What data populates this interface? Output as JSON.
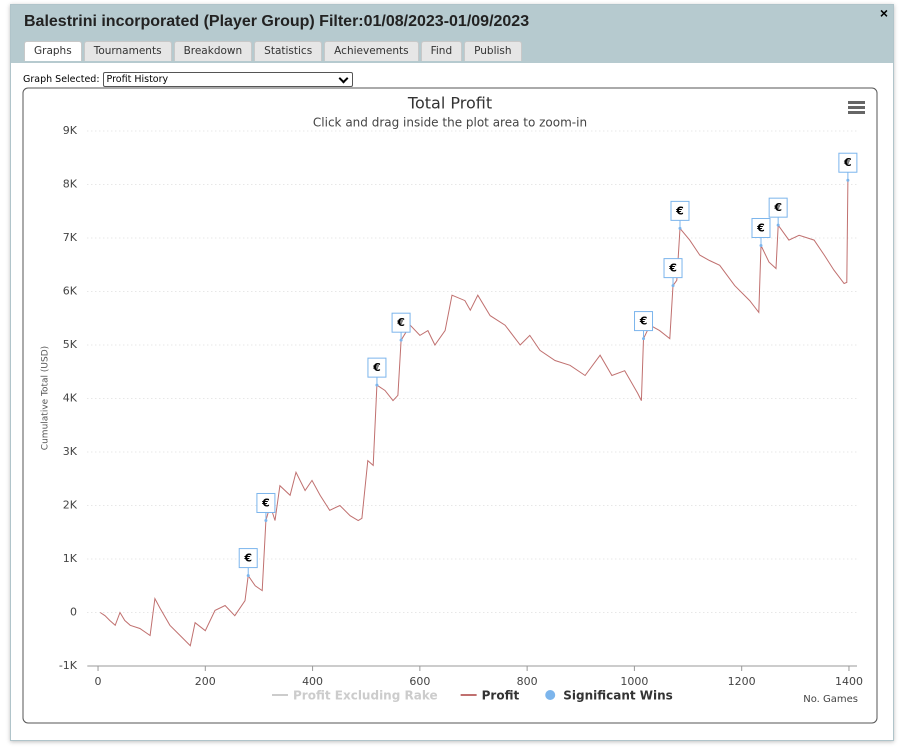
{
  "header": {
    "title": "Balestrini incorporated (Player Group) Filter:01/08/2023-01/09/2023"
  },
  "tabs": [
    {
      "label": "Graphs",
      "active": true
    },
    {
      "label": "Tournaments",
      "active": false
    },
    {
      "label": "Breakdown",
      "active": false
    },
    {
      "label": "Statistics",
      "active": false
    },
    {
      "label": "Achievements",
      "active": false
    },
    {
      "label": "Find",
      "active": false
    },
    {
      "label": "Publish",
      "active": false
    }
  ],
  "selector": {
    "label": "Graph Selected:",
    "value": "Profit History"
  },
  "chart_data": {
    "type": "line",
    "title": "Total Profit",
    "subtitle": "Click and drag inside the plot area to zoom-in",
    "x_label": "No. Games",
    "y_label": "Cumulative Total (USD)",
    "xlim": [
      -20,
      1415
    ],
    "ylim": [
      -1000,
      9000
    ],
    "xticks": [
      0,
      200,
      400,
      600,
      800,
      1000,
      1200,
      1400
    ],
    "yticks": [
      {
        "value": -1000,
        "label": "-1K"
      },
      0,
      {
        "value": 1000,
        "label": "1K"
      },
      {
        "value": 2000,
        "label": "2K"
      },
      {
        "value": 3000,
        "label": "3K"
      },
      {
        "value": 4000,
        "label": "4K"
      },
      {
        "value": 5000,
        "label": "5K"
      },
      {
        "value": 6000,
        "label": "6K"
      },
      {
        "value": 7000,
        "label": "7K"
      },
      {
        "value": 8000,
        "label": "8K"
      },
      {
        "value": 9000,
        "label": "9K"
      }
    ],
    "grid": true,
    "series": [
      {
        "name": "Profit Excluding Rake",
        "color": "#cccccc",
        "visible": false
      },
      {
        "name": "Profit",
        "color": "#c0706f",
        "visible": true,
        "x": [
          4,
          13,
          22,
          32,
          41,
          50,
          60,
          78,
          97,
          106,
          116,
          134,
          153,
          172,
          181,
          200,
          218,
          237,
          255,
          274,
          280,
          293,
          306,
          313,
          321,
          330,
          339,
          358,
          369,
          386,
          399,
          414,
          432,
          451,
          470,
          485,
          492,
          503,
          513,
          520,
          535,
          550,
          559,
          565,
          582,
          600,
          615,
          628,
          647,
          660,
          684,
          694,
          708,
          731,
          759,
          787,
          805,
          824,
          852,
          880,
          908,
          936,
          958,
          982,
          1006,
          1013,
          1017,
          1029,
          1047,
          1066,
          1072,
          1079,
          1085,
          1103,
          1122,
          1140,
          1159,
          1187,
          1215,
          1232,
          1236,
          1251,
          1264,
          1268,
          1288,
          1307,
          1335,
          1354,
          1372,
          1391,
          1396,
          1398
        ],
        "values": [
          0,
          -60,
          -150,
          -240,
          0,
          -150,
          -240,
          -300,
          -430,
          260,
          75,
          -240,
          -430,
          -620,
          -190,
          -340,
          40,
          130,
          -60,
          220,
          690,
          500,
          410,
          1720,
          2000,
          1720,
          2370,
          2190,
          2620,
          2280,
          2470,
          2190,
          1910,
          2000,
          1810,
          1720,
          1760,
          2840,
          2750,
          4250,
          4150,
          3960,
          4060,
          5090,
          5370,
          5180,
          5270,
          5000,
          5270,
          5930,
          5830,
          5650,
          5930,
          5550,
          5370,
          5000,
          5180,
          4900,
          4710,
          4620,
          4430,
          4810,
          4430,
          4520,
          4100,
          3960,
          5120,
          5370,
          5270,
          5120,
          6110,
          6210,
          7180,
          6960,
          6680,
          6580,
          6490,
          6110,
          5830,
          5610,
          6860,
          6550,
          6430,
          7240,
          6960,
          7050,
          6960,
          6680,
          6400,
          6150,
          6170,
          8080
        ]
      },
      {
        "name": "Significant Wins",
        "color": "#7cb5ec",
        "visible": true,
        "marker_label": "€",
        "x": [
          280,
          313,
          520,
          565,
          1017,
          1072,
          1085,
          1236,
          1268,
          1398
        ],
        "values": [
          690,
          1720,
          4250,
          5090,
          5120,
          6110,
          7180,
          6860,
          7240,
          8080
        ]
      }
    ]
  }
}
